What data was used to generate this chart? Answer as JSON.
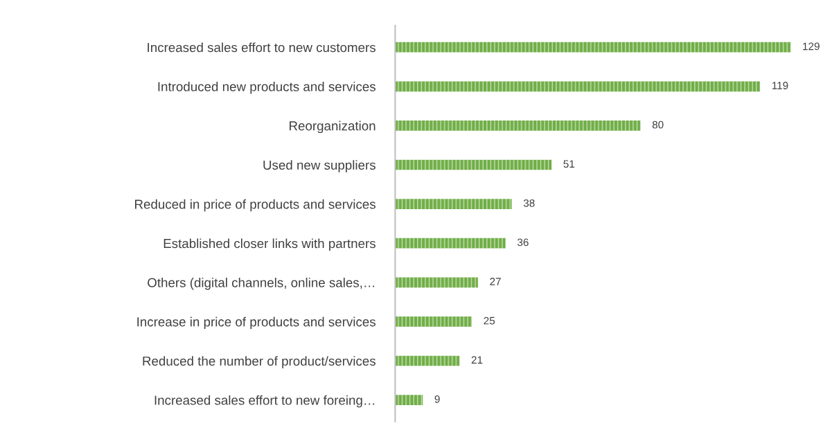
{
  "chart_data": {
    "type": "bar",
    "orientation": "horizontal",
    "categories": [
      "Increased sales effort to new customers",
      "Introduced new products and services",
      "Reorganization",
      "Used new suppliers",
      "Reduced in price of products and services",
      "Established closer links with partners",
      "Others (digital channels, online sales,…",
      "Increase in price of products and services",
      "Reduced the number of product/services",
      "Increased sales effort to new foreing…"
    ],
    "values": [
      129,
      119,
      80,
      51,
      38,
      36,
      27,
      25,
      21,
      9
    ],
    "color": "#70ad47",
    "data_labels": true,
    "grid": false,
    "legend": false,
    "tick_labels": "y"
  }
}
